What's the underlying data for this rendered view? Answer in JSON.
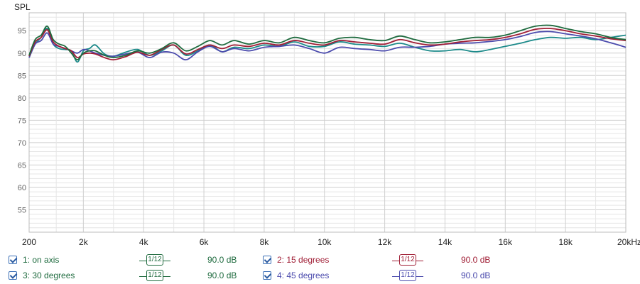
{
  "chart_data": {
    "type": "line",
    "ylabel": "SPL",
    "xlabel": "",
    "xlim": [
      200,
      20000
    ],
    "ylim": [
      50,
      99
    ],
    "x_ticks": [
      200,
      2000,
      4000,
      6000,
      8000,
      10000,
      12000,
      14000,
      16000,
      18000,
      20000
    ],
    "x_tick_labels": [
      "200",
      "2k",
      "4k",
      "6k",
      "8k",
      "10k",
      "12k",
      "14k",
      "16k",
      "18k",
      "20kHz"
    ],
    "y_ticks": [
      55,
      60,
      65,
      70,
      75,
      80,
      85,
      90,
      95
    ],
    "y_tick_labels": [
      "55",
      "60",
      "65",
      "70",
      "75",
      "80",
      "85",
      "90",
      "95"
    ],
    "grid": true,
    "series": [
      {
        "name": "1: on axis",
        "color": "#1f6b3f",
        "x": [
          200,
          400,
          600,
          800,
          1000,
          1200,
          1400,
          1600,
          1800,
          2000,
          2200,
          2400,
          2700,
          3000,
          3400,
          3800,
          4200,
          4600,
          5000,
          5400,
          5800,
          6200,
          6600,
          7000,
          7500,
          8000,
          8500,
          9000,
          9500,
          10000,
          10500,
          11000,
          11500,
          12000,
          12500,
          13000,
          13500,
          14000,
          14500,
          15000,
          15500,
          16000,
          16500,
          17000,
          17500,
          18000,
          18500,
          19000,
          19500,
          20000
        ],
        "y": [
          89.5,
          93,
          94,
          96,
          93,
          92,
          91.5,
          90,
          88.5,
          90,
          90.5,
          90.5,
          89.5,
          89,
          89.5,
          90.5,
          90,
          91,
          92.3,
          90.5,
          91.5,
          92.8,
          91.8,
          92.8,
          92,
          92.8,
          92.3,
          93.5,
          92.8,
          92.3,
          93.3,
          93.5,
          93,
          92.8,
          93.8,
          93,
          92.3,
          92.5,
          93,
          93.5,
          93.5,
          94,
          95,
          96,
          96.2,
          95.5,
          94.8,
          94.3,
          93.5,
          93
        ]
      },
      {
        "name": "2: 15 degrees",
        "color": "#a01e35",
        "x": [
          200,
          400,
          600,
          800,
          1000,
          1200,
          1400,
          1600,
          1800,
          2000,
          2200,
          2400,
          2700,
          3000,
          3400,
          3800,
          4200,
          4600,
          5000,
          5400,
          5800,
          6200,
          6600,
          7000,
          7500,
          8000,
          8500,
          9000,
          9500,
          10000,
          10500,
          11000,
          11500,
          12000,
          12500,
          13000,
          13500,
          14000,
          14500,
          15000,
          15500,
          16000,
          16500,
          17000,
          17500,
          18000,
          18500,
          19000,
          19500,
          20000
        ],
        "y": [
          89.3,
          92.5,
          93.5,
          95.2,
          92.5,
          91.5,
          91,
          90.5,
          89,
          89.8,
          90,
          89.8,
          89,
          88.5,
          89.2,
          90.2,
          89.5,
          90.8,
          91.8,
          89.8,
          90.8,
          91.8,
          91,
          91.8,
          91.5,
          92.2,
          91.8,
          92.8,
          92.2,
          91.8,
          92.8,
          92.5,
          92.2,
          92,
          93,
          92.3,
          91.8,
          92,
          92.5,
          92.8,
          93,
          93.5,
          94.3,
          95.3,
          95.5,
          95,
          94.3,
          93.8,
          93.2,
          92.8
        ]
      },
      {
        "name": "3: 30 degrees",
        "color": "#1c8a8a",
        "x": [
          200,
          400,
          600,
          800,
          1000,
          1200,
          1400,
          1600,
          1800,
          2000,
          2200,
          2400,
          2700,
          3000,
          3400,
          3800,
          4200,
          4600,
          5000,
          5400,
          5800,
          6200,
          6600,
          7000,
          7500,
          8000,
          8500,
          9000,
          9500,
          10000,
          10500,
          11000,
          11500,
          12000,
          12500,
          13000,
          13500,
          14000,
          14500,
          15000,
          15500,
          16000,
          16500,
          17000,
          17500,
          18000,
          18500,
          19000,
          19500,
          20000
        ],
        "y": [
          89,
          92,
          93.5,
          95.5,
          92,
          91,
          90.8,
          90.5,
          88,
          90.5,
          91,
          91.8,
          89.8,
          89.3,
          90.2,
          90.8,
          89.5,
          90.5,
          91.8,
          89.5,
          90.5,
          91.8,
          90.3,
          91.3,
          91,
          91.8,
          91.5,
          92.5,
          91.5,
          91.5,
          92.5,
          92,
          91.8,
          91.5,
          92.2,
          91.3,
          90.5,
          90.5,
          90.8,
          90.3,
          90.8,
          91.5,
          92.2,
          93,
          93.5,
          93.3,
          93.5,
          93,
          93.5,
          94
        ]
      },
      {
        "name": "4: 45 degrees",
        "color": "#4b4bad",
        "x": [
          200,
          400,
          600,
          800,
          1000,
          1200,
          1400,
          1600,
          1800,
          2000,
          2200,
          2400,
          2700,
          3000,
          3400,
          3800,
          4200,
          4600,
          5000,
          5400,
          5800,
          6200,
          6600,
          7000,
          7500,
          8000,
          8500,
          9000,
          9500,
          10000,
          10500,
          11000,
          11500,
          12000,
          12500,
          13000,
          13500,
          14000,
          14500,
          15000,
          15500,
          16000,
          16500,
          17000,
          17500,
          18000,
          18500,
          19000,
          19500,
          20000
        ],
        "y": [
          89,
          92,
          92.8,
          94.5,
          92,
          91.5,
          91,
          90.5,
          90,
          90.8,
          90.5,
          90,
          89.5,
          89.3,
          89.8,
          90.2,
          89,
          90.2,
          90,
          88.5,
          90.3,
          91.5,
          90.3,
          91,
          90.5,
          91.3,
          91.5,
          91.8,
          91,
          90,
          91.3,
          91,
          90.8,
          90.5,
          91.3,
          91.3,
          91.5,
          92,
          92.2,
          92.3,
          92.6,
          93,
          93.7,
          94.6,
          94.8,
          94.3,
          93.8,
          93.2,
          92.3,
          91.3
        ]
      }
    ]
  },
  "legend": {
    "items": [
      {
        "label": "1: on axis",
        "smoothing": "1/12",
        "level": "90.0 dB",
        "color": "#1f6b3f"
      },
      {
        "label": "2: 15 degrees",
        "smoothing": "1/12",
        "level": "90.0 dB",
        "color": "#a01e35"
      },
      {
        "label": "3: 30 degrees",
        "smoothing": "1/12",
        "level": "90.0 dB",
        "color": "#1c8a8a"
      },
      {
        "label": "4: 45 degrees",
        "smoothing": "1/12",
        "level": "90.0 dB",
        "color": "#4b4bad"
      }
    ]
  },
  "colors": {
    "grid_major": "#cfcfcf",
    "grid_minor": "#e6e6e6",
    "axis_text": "#333333"
  }
}
